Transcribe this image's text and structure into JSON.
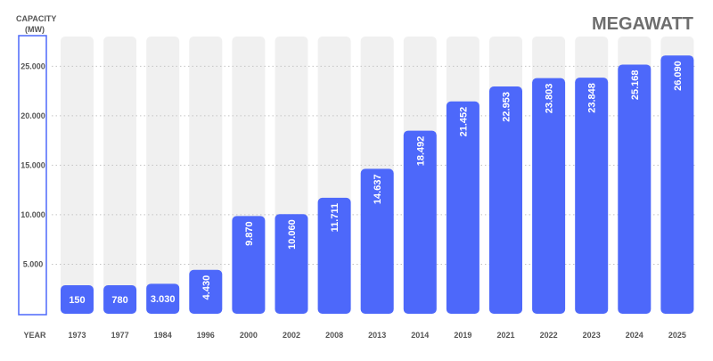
{
  "chart_data": {
    "type": "bar",
    "title": "MEGAWATT",
    "ylabel": "CAPACITY (MW)",
    "xlabel": "YEAR",
    "ylabel_lines": [
      "CAPACITY",
      "(MW)"
    ],
    "ylim": [
      0,
      28000
    ],
    "yticks": [
      5000,
      10000,
      15000,
      20000,
      25000
    ],
    "ytick_labels": [
      "5.000",
      "10.000",
      "15.000",
      "20.000",
      "25.000"
    ],
    "grid": "dotted horizontal",
    "categories": [
      "1973",
      "1977",
      "1984",
      "1996",
      "2000",
      "2002",
      "2008",
      "2013",
      "2014",
      "2019",
      "2021",
      "2022",
      "2023",
      "2024",
      "2025"
    ],
    "values": [
      150,
      780,
      3030,
      4430,
      9870,
      10060,
      11711,
      14637,
      18492,
      21452,
      22953,
      23803,
      23848,
      25168,
      26090
    ],
    "value_labels": [
      "150",
      "780",
      "3.030",
      "4.430",
      "9.870",
      "10.060",
      "11.711",
      "14.637",
      "18.492",
      "21.452",
      "22.953",
      "23.803",
      "23.848",
      "25.168",
      "26.090"
    ],
    "colors": {
      "bar": "#4d68fa",
      "track": "#f0f0f0",
      "axis_box": "#4d68fa",
      "text": "#555555",
      "title": "#6e6e6e",
      "grid": "#c4c4c4",
      "value_text": "#ffffff"
    }
  }
}
